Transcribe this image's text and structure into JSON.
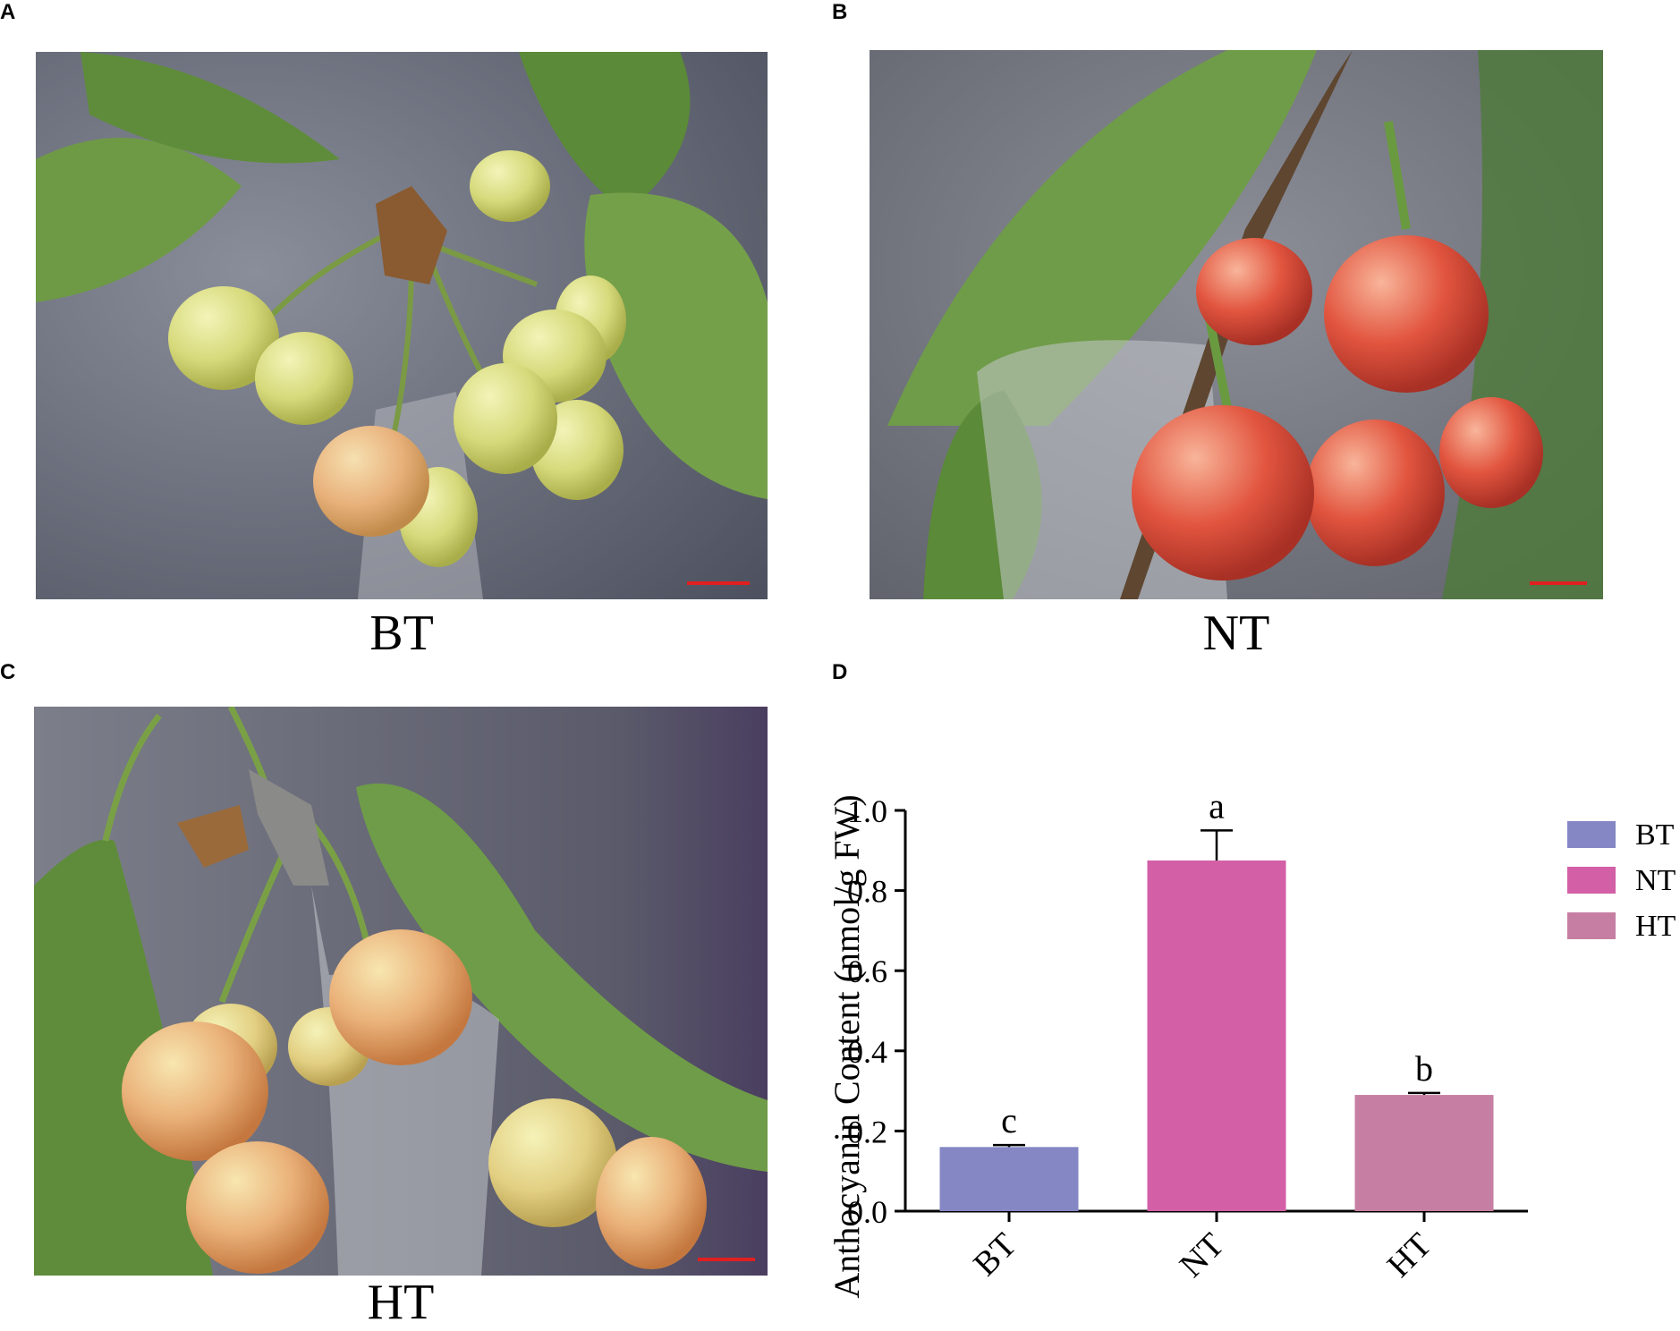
{
  "panels": {
    "a": {
      "letter": "A",
      "caption": "BT"
    },
    "b": {
      "letter": "B",
      "caption": "NT"
    },
    "c": {
      "letter": "C",
      "caption": "HT"
    },
    "d": {
      "letter": "D"
    }
  },
  "colors": {
    "BT": "#8487c4",
    "NT": "#d35fa6",
    "HT": "#c67fa2",
    "scale_bar": "#e02020"
  },
  "chart_data": {
    "type": "bar",
    "categories": [
      "BT",
      "NT",
      "HT"
    ],
    "values": [
      0.16,
      0.875,
      0.29
    ],
    "errors": [
      0.005,
      0.075,
      0.005
    ],
    "significance": [
      "c",
      "a",
      "b"
    ],
    "ylabel": "Anthocyanin Content (nmol/g FW)",
    "ylim": [
      0,
      1.0
    ],
    "yticks": [
      "0.0",
      "0.2",
      "0.4",
      "0.6",
      "0.8",
      "1.0"
    ],
    "legend": [
      "BT",
      "NT",
      "HT"
    ],
    "legend_position": "right",
    "grid": false
  }
}
